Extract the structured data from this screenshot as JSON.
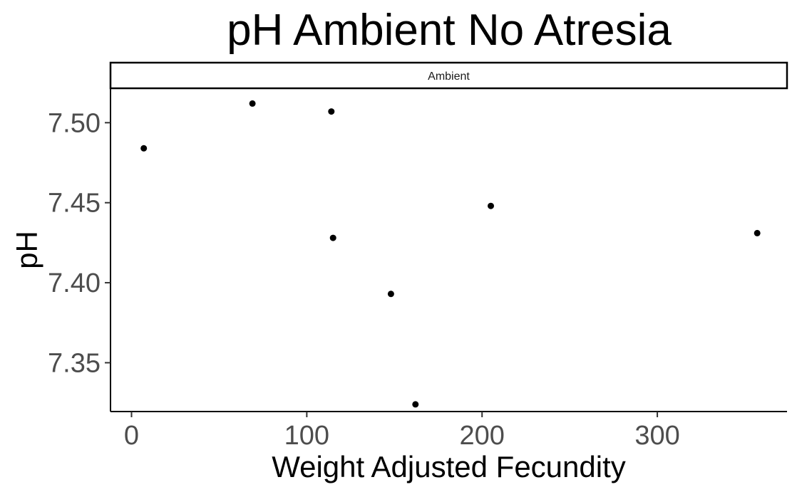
{
  "chart_data": {
    "type": "scatter",
    "title": "pH Ambient No Atresia",
    "facet_label": "Ambient",
    "xlabel": "Weight Adjusted Fecundity",
    "ylabel": "pH",
    "xlim": [
      -12,
      374
    ],
    "ylim": [
      7.3195,
      7.5215
    ],
    "x_ticks": [
      0,
      100,
      200,
      300
    ],
    "x_tick_labels": [
      "0",
      "100",
      "200",
      "300"
    ],
    "y_ticks": [
      7.35,
      7.4,
      7.45,
      7.5
    ],
    "y_tick_labels": [
      "7.35",
      "7.40",
      "7.45",
      "7.50"
    ],
    "grid": false,
    "point_color": "#000000",
    "points": [
      {
        "x": 7,
        "y": 7.484
      },
      {
        "x": 69,
        "y": 7.512
      },
      {
        "x": 114,
        "y": 7.507
      },
      {
        "x": 115,
        "y": 7.428
      },
      {
        "x": 148,
        "y": 7.393
      },
      {
        "x": 162,
        "y": 7.324
      },
      {
        "x": 205,
        "y": 7.448
      },
      {
        "x": 357,
        "y": 7.431
      }
    ]
  }
}
